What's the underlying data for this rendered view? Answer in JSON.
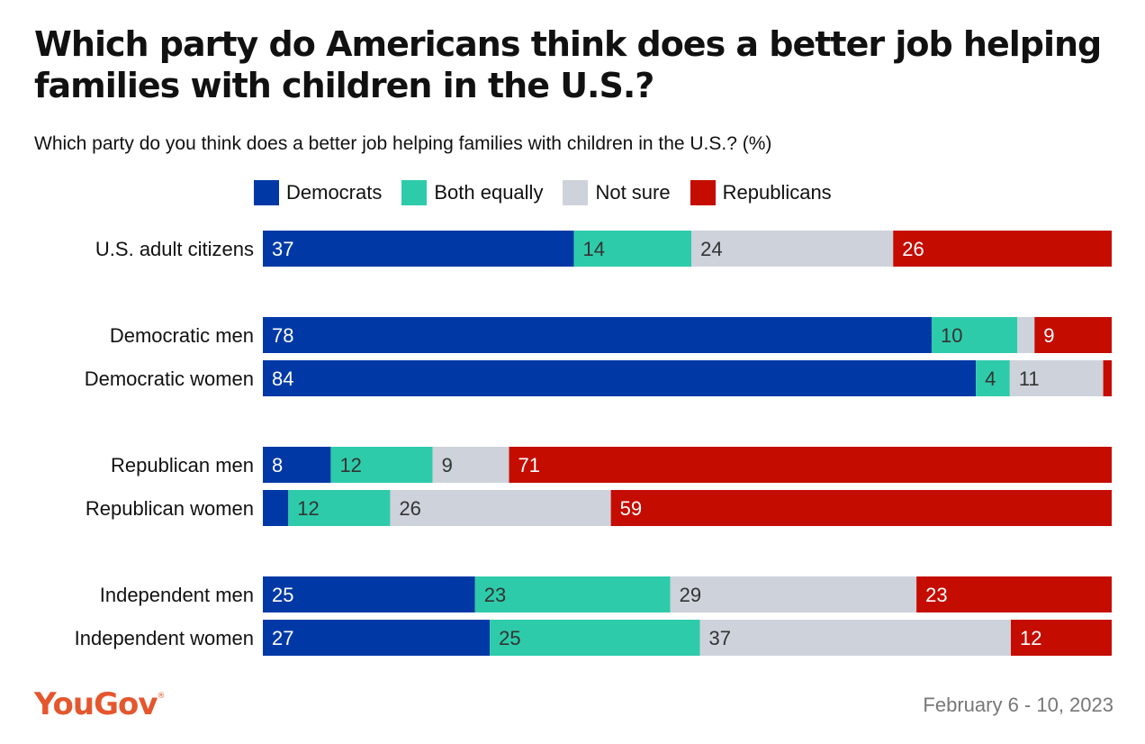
{
  "header": {
    "title": "Which party do Americans think does a better job helping families with children in the U.S.?",
    "subtitle": "Which party do you think does a better job helping families with children in the U.S.? (%)"
  },
  "legend": [
    {
      "label": "Democrats",
      "color": "#0039a6"
    },
    {
      "label": "Both equally",
      "color": "#2ecbaa"
    },
    {
      "label": "Not sure",
      "color": "#cdd2db"
    },
    {
      "label": "Republicans",
      "color": "#c50c00"
    }
  ],
  "chart_data": {
    "type": "bar",
    "orientation": "horizontal",
    "stacked": true,
    "title": "Which party do Americans think does a better job helping families with children in the U.S.?",
    "subtitle": "Which party do you think does a better job helping families with children in the U.S.? (%)",
    "categories": [
      "U.S. adult citizens",
      "Democratic men",
      "Democratic women",
      "Republican men",
      "Republican women",
      "Independent men",
      "Independent women"
    ],
    "groups": [
      [
        0
      ],
      [
        1,
        2
      ],
      [
        3,
        4
      ],
      [
        5,
        6
      ]
    ],
    "series": [
      {
        "name": "Democrats",
        "color": "#0039a6",
        "values": [
          37,
          78,
          84,
          8,
          3,
          25,
          27
        ],
        "labels": [
          "37",
          "78",
          "84",
          "8",
          "",
          "25",
          "27"
        ]
      },
      {
        "name": "Both equally",
        "color": "#2ecbaa",
        "values": [
          14,
          10,
          4,
          12,
          12,
          23,
          25
        ],
        "labels": [
          "14",
          "10",
          "4",
          "12",
          "12",
          "23",
          "25"
        ]
      },
      {
        "name": "Not sure",
        "color": "#cdd2db",
        "values": [
          24,
          2,
          11,
          9,
          26,
          29,
          37
        ],
        "labels": [
          "24",
          "",
          "11",
          "9",
          "26",
          "29",
          "37"
        ]
      },
      {
        "name": "Republicans",
        "color": "#c50c00",
        "values": [
          26,
          9,
          1,
          71,
          59,
          23,
          12
        ],
        "labels": [
          "26",
          "9",
          "",
          "71",
          "59",
          "23",
          "12"
        ]
      }
    ],
    "xlim": [
      0,
      100
    ],
    "grid": false,
    "legend_position": "top"
  },
  "footer": {
    "logo": "YouGov",
    "date": "February 6 - 10, 2023"
  }
}
